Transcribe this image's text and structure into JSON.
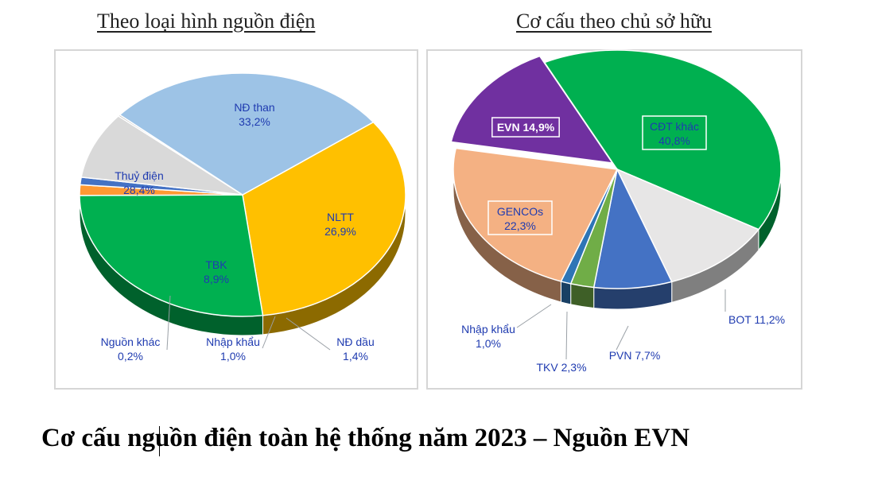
{
  "caption": "Cơ cấu nguồn điện toàn hệ thống năm 2023 – Nguồn EVN",
  "chart_data": [
    {
      "type": "pie",
      "title": "Theo loại hình nguồn điện",
      "slices": [
        {
          "name": "NĐ than",
          "value": 33.2,
          "label": "33,2%",
          "color": "#ffc000"
        },
        {
          "name": "NLTT",
          "value": 26.9,
          "label": "26,9%",
          "color": "#00b050"
        },
        {
          "name": "NĐ dầu",
          "value": 1.4,
          "label": "1,4%",
          "color": "#ff9933"
        },
        {
          "name": "Nhập khẩu",
          "value": 1.0,
          "label": "1,0%",
          "color": "#4472c4"
        },
        {
          "name": "TBK",
          "value": 8.9,
          "label": "8,9%",
          "color": "#d9d9d9"
        },
        {
          "name": "Nguồn khác",
          "value": 0.2,
          "label": "0,2%",
          "color": "#a5a5a5"
        },
        {
          "name": "Thuỷ điện",
          "value": 28.4,
          "label": "28,4%",
          "color": "#9dc3e6"
        }
      ]
    },
    {
      "type": "pie",
      "title": "Cơ cấu theo chủ sở hữu",
      "slices": [
        {
          "name": "CĐT khác",
          "value": 40.8,
          "label": "40,8%",
          "color": "#00b050"
        },
        {
          "name": "BOT",
          "value": 11.2,
          "label": "11,2%",
          "color": "#e7e6e6"
        },
        {
          "name": "PVN",
          "value": 7.7,
          "label": "7,7%",
          "color": "#4472c4"
        },
        {
          "name": "TKV",
          "value": 2.3,
          "label": "2,3%",
          "color": "#70ad47"
        },
        {
          "name": "Nhập khẩu",
          "value": 1.0,
          "label": "1,0%",
          "color": "#2e75b6"
        },
        {
          "name": "GENCOs",
          "value": 22.3,
          "label": "22,3%",
          "color": "#f4b183"
        },
        {
          "name": "EVN",
          "value": 14.9,
          "label": "14,9%",
          "color": "#7030a0"
        }
      ]
    }
  ]
}
